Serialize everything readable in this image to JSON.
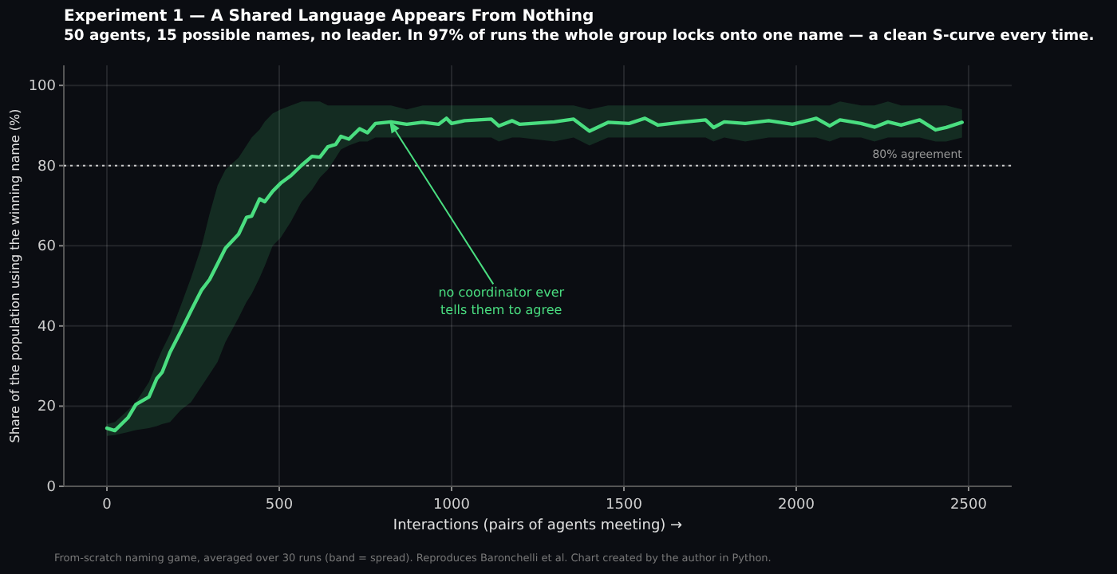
{
  "chart_data": {
    "type": "line",
    "title": "Experiment 1 — A Shared Language Appears From Nothing",
    "subtitle": "50 agents, 15 possible names, no leader. In 97% of runs the whole group locks onto one name — a clean S-curve every time.",
    "xlabel": "Interactions (pairs of agents meeting) →",
    "ylabel": "Share of the population using the winning name (%)",
    "x": [
      0,
      23,
      61,
      84,
      122,
      145,
      160,
      183,
      214,
      244,
      275,
      298,
      321,
      344,
      382,
      405,
      420,
      443,
      458,
      481,
      504,
      534,
      565,
      595,
      618,
      641,
      664,
      679,
      702,
      733,
      756,
      779,
      824,
      870,
      916,
      962,
      985,
      1000,
      1038,
      1115,
      1137,
      1176,
      1198,
      1298,
      1354,
      1400,
      1454,
      1515,
      1561,
      1599,
      1668,
      1737,
      1760,
      1791,
      1852,
      1920,
      1989,
      2058,
      2097,
      2127,
      2188,
      2227,
      2266,
      2304,
      2358,
      2404,
      2435,
      2481
    ],
    "series": [
      {
        "color": "#4ade80",
        "values": [
          14.5,
          13.9,
          17.1,
          20.4,
          22.3,
          26.9,
          28.4,
          33.4,
          38.6,
          43.8,
          49,
          51.6,
          55.5,
          59.4,
          62.9,
          67.1,
          67.4,
          71.7,
          71,
          73.6,
          75.6,
          77.5,
          80.1,
          82.3,
          82.1,
          84.7,
          85.3,
          87.3,
          86.6,
          89.2,
          88.2,
          90.5,
          90.9,
          90.3,
          90.8,
          90.3,
          91.8,
          90.5,
          91.2,
          91.6,
          89.9,
          91.2,
          90.3,
          90.9,
          91.6,
          88.6,
          90.8,
          90.5,
          91.8,
          90.1,
          90.8,
          91.4,
          89.5,
          90.9,
          90.5,
          91.2,
          90.3,
          91.8,
          89.9,
          91.4,
          90.5,
          89.6,
          90.9,
          90.1,
          91.4,
          88.9,
          89.5,
          90.8
        ],
        "lower": [
          12.6,
          12.8,
          13.5,
          14,
          14.5,
          15,
          15.5,
          16,
          19,
          21,
          25,
          28,
          31,
          36,
          42,
          46,
          48,
          52,
          55,
          60,
          62,
          66,
          71,
          74,
          77,
          79,
          82,
          84,
          85,
          86,
          86,
          87,
          87,
          87,
          87,
          87,
          87,
          87,
          87,
          87,
          86,
          87,
          87,
          86,
          87,
          85,
          87,
          87,
          87,
          87,
          87,
          87,
          86,
          87,
          86,
          87,
          87,
          87,
          86,
          87,
          87,
          86,
          87,
          87,
          87,
          86,
          86,
          87
        ],
        "upper": [
          15.5,
          16,
          19,
          21,
          26,
          31,
          34,
          38,
          45,
          52,
          60,
          68,
          75,
          79,
          82,
          85,
          87,
          89,
          91,
          93,
          94,
          95,
          96,
          96,
          96,
          95,
          95,
          95,
          95,
          95,
          95,
          95,
          95,
          94,
          95,
          95,
          95,
          95,
          95,
          95,
          95,
          95,
          95,
          95,
          95,
          94,
          95,
          95,
          95,
          95,
          95,
          95,
          95,
          95,
          95,
          95,
          95,
          95,
          95,
          96,
          95,
          95,
          96,
          95,
          95,
          95,
          95,
          94
        ]
      }
    ],
    "xlim": [
      -125,
      2625
    ],
    "ylim": [
      0,
      105
    ],
    "xticks": [
      0,
      500,
      1000,
      1500,
      2000,
      2500
    ],
    "yticks": [
      0,
      20,
      40,
      60,
      80,
      100
    ],
    "grid": true,
    "line_style": "solid",
    "ref_lines": [
      {
        "axis": "y",
        "value": 80,
        "label": "80% agreement",
        "color": "#cccccc",
        "line_style": "dotted"
      }
    ],
    "annotations": [
      {
        "text": "no coordinator ever\ntells them to agree",
        "x": 820,
        "y": 91
      },
      "From-scratch naming game, averaged over 30 runs (band = spread). Reproduces Baronchelli et al. Chart created by the author in Python."
    ]
  }
}
